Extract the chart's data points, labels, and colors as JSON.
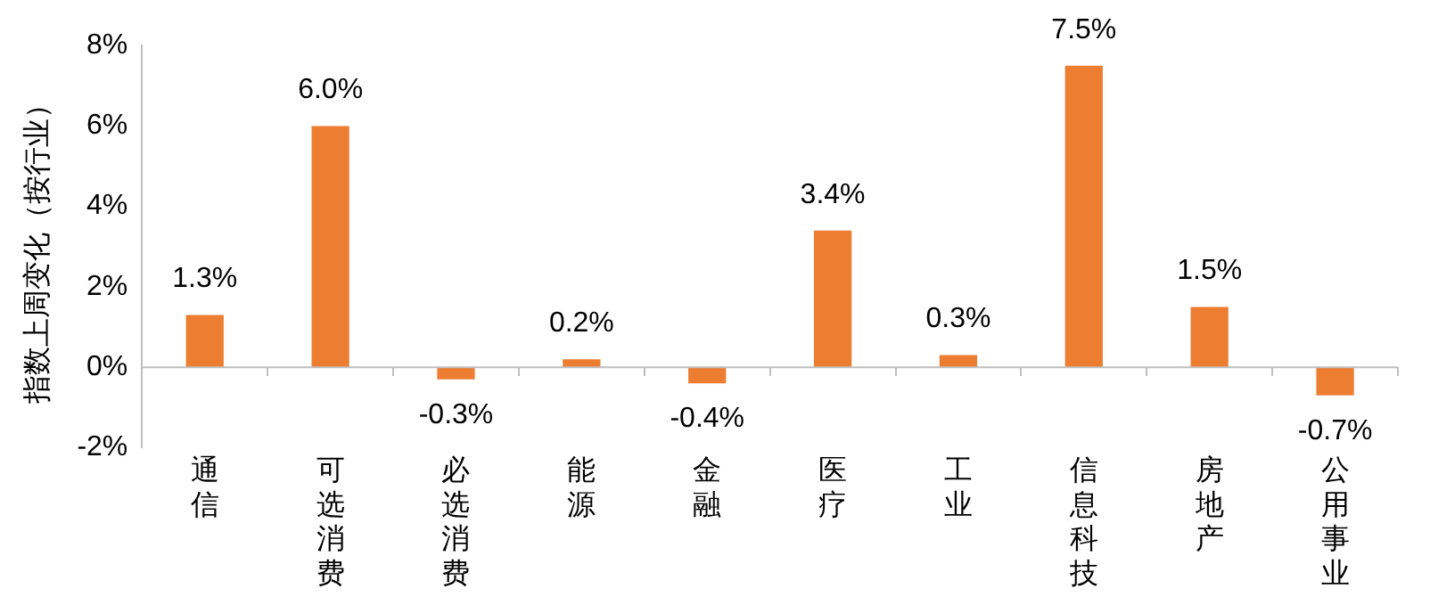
{
  "chart_data": {
    "type": "bar",
    "ylabel": "指数上周变化（按行业）",
    "categories": [
      "通信",
      "可选消费",
      "必选消费",
      "能源",
      "金融",
      "医疗",
      "工业",
      "信息科技",
      "房地产",
      "公用事业"
    ],
    "series": [
      {
        "color": "#ed7d31",
        "values": [
          1.3,
          6.0,
          -0.3,
          0.2,
          -0.4,
          3.4,
          0.3,
          7.5,
          1.5,
          -0.7
        ]
      }
    ],
    "value_labels": [
      "1.3%",
      "6.0%",
      "-0.3%",
      "0.2%",
      "-0.4%",
      "3.4%",
      "0.3%",
      "7.5%",
      "1.5%",
      "-0.7%"
    ],
    "ylim": [
      -2,
      8
    ],
    "yticks": [
      {
        "value": -2,
        "label": "-2%"
      },
      {
        "value": 0,
        "label": "0%"
      },
      {
        "value": 2,
        "label": "2%"
      },
      {
        "value": 4,
        "label": "4%"
      },
      {
        "value": 6,
        "label": "6%"
      },
      {
        "value": 8,
        "label": "8%"
      }
    ],
    "ref_lines": [
      {
        "axis": "y",
        "value": 0,
        "color": "#bfbfbf"
      }
    ],
    "legend": false
  }
}
